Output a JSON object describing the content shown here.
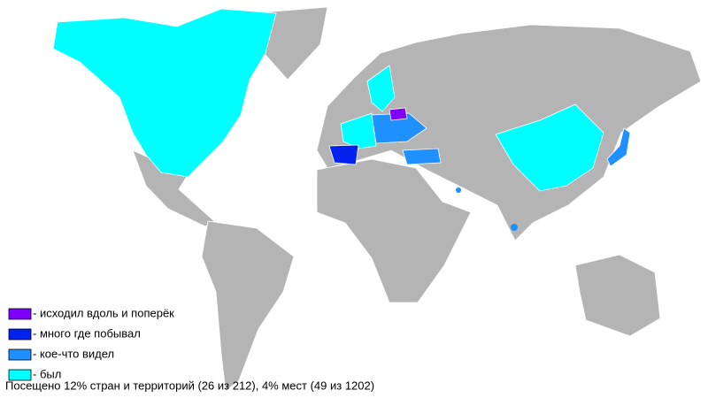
{
  "legend": {
    "items": [
      {
        "label": "- исходил вдоль и поперёк",
        "color": "#8000ff"
      },
      {
        "label": "- много где побывал",
        "color": "#0022ee"
      },
      {
        "label": "- кое-что видел",
        "color": "#1e90ff"
      },
      {
        "label": "- был",
        "color": "#00ffff"
      }
    ]
  },
  "caption": "Посещено 12% стран и территорий (26 из 212), 4% мест (49 из 1202)"
}
